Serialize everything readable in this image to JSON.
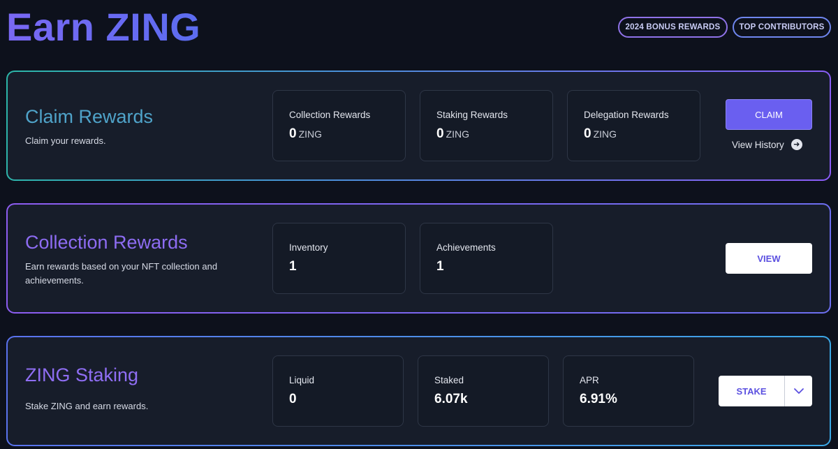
{
  "page": {
    "title": "Earn ZING"
  },
  "header_buttons": {
    "bonus": "2024 BONUS REWARDS",
    "top": "TOP CONTRIBUTORS"
  },
  "claim": {
    "title": "Claim Rewards",
    "description": "Claim your rewards.",
    "stats": [
      {
        "label": "Collection Rewards",
        "value": "0",
        "unit": "ZING"
      },
      {
        "label": "Staking Rewards",
        "value": "0",
        "unit": "ZING"
      },
      {
        "label": "Delegation Rewards",
        "value": "0",
        "unit": "ZING"
      }
    ],
    "claim_label": "CLAIM",
    "history_label": "View History"
  },
  "collection": {
    "title": "Collection Rewards",
    "description": "Earn rewards based on your NFT collection and achievements.",
    "stats": [
      {
        "label": "Inventory",
        "value": "1"
      },
      {
        "label": "Achievements",
        "value": "1"
      }
    ],
    "view_label": "VIEW"
  },
  "staking": {
    "title": "ZING Staking",
    "description": "Stake ZING and earn rewards.",
    "stats": [
      {
        "label": "Liquid",
        "value": "0"
      },
      {
        "label": "Staked",
        "value": "6.07k"
      },
      {
        "label": "APR",
        "value": "6.91%"
      }
    ],
    "stake_label": "STAKE"
  },
  "colors": {
    "accent": "#6a5ff0",
    "background": "#0d111c",
    "card": "#171d2a"
  },
  "icons": {
    "history": "arrow-right-circle-icon",
    "dropdown": "chevron-down-icon"
  }
}
